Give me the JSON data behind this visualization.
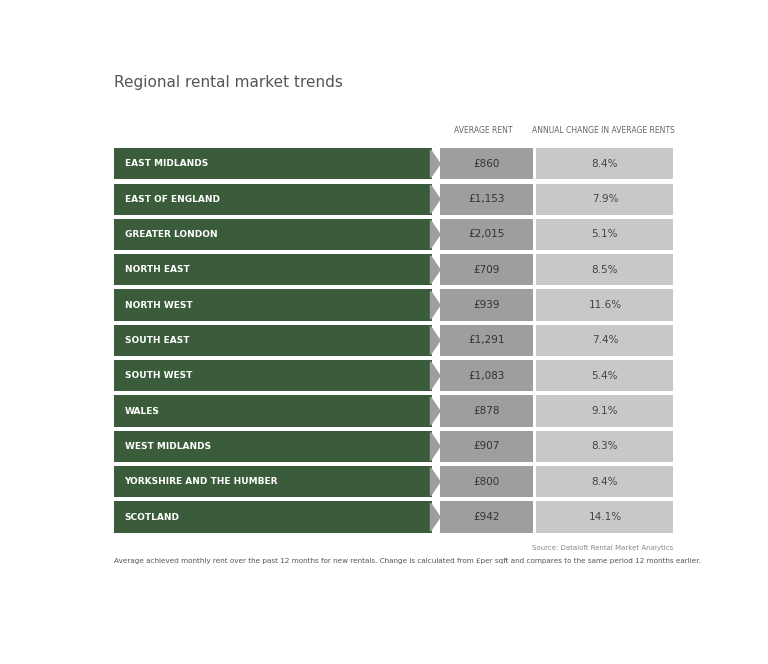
{
  "title": "Regional rental market trends",
  "col_header_1": "AVERAGE RENT",
  "col_header_2": "ANNUAL CHANGE IN AVERAGE RENTS",
  "source": "Source: Dataloft Rental Market Analytics",
  "footnote": "Average achieved monthly rent over the past 12 months for new rentals. Change is calculated from £per sqft and compares to the same period 12 months earlier.",
  "regions": [
    "EAST MIDLANDS",
    "EAST OF ENGLAND",
    "GREATER LONDON",
    "NORTH EAST",
    "NORTH WEST",
    "SOUTH EAST",
    "SOUTH WEST",
    "WALES",
    "WEST MIDLANDS",
    "YORKSHIRE AND THE HUMBER",
    "SCOTLAND"
  ],
  "avg_rent": [
    "£860",
    "£1,153",
    "£2,015",
    "£709",
    "£939",
    "£1,291",
    "£1,083",
    "£878",
    "£907",
    "£800",
    "£942"
  ],
  "annual_change": [
    "8.4%",
    "7.9%",
    "5.1%",
    "8.5%",
    "11.6%",
    "7.4%",
    "5.4%",
    "9.1%",
    "8.3%",
    "8.4%",
    "14.1%"
  ],
  "green_color": "#3a5c3a",
  "mid_gray": "#9e9e9e",
  "light_gray": "#c8c8c8",
  "text_color_white": "#ffffff",
  "text_color_dark": "#444444",
  "title_color": "#555555",
  "header_color": "#666666",
  "source_color": "#888888",
  "footnote_color": "#555555"
}
